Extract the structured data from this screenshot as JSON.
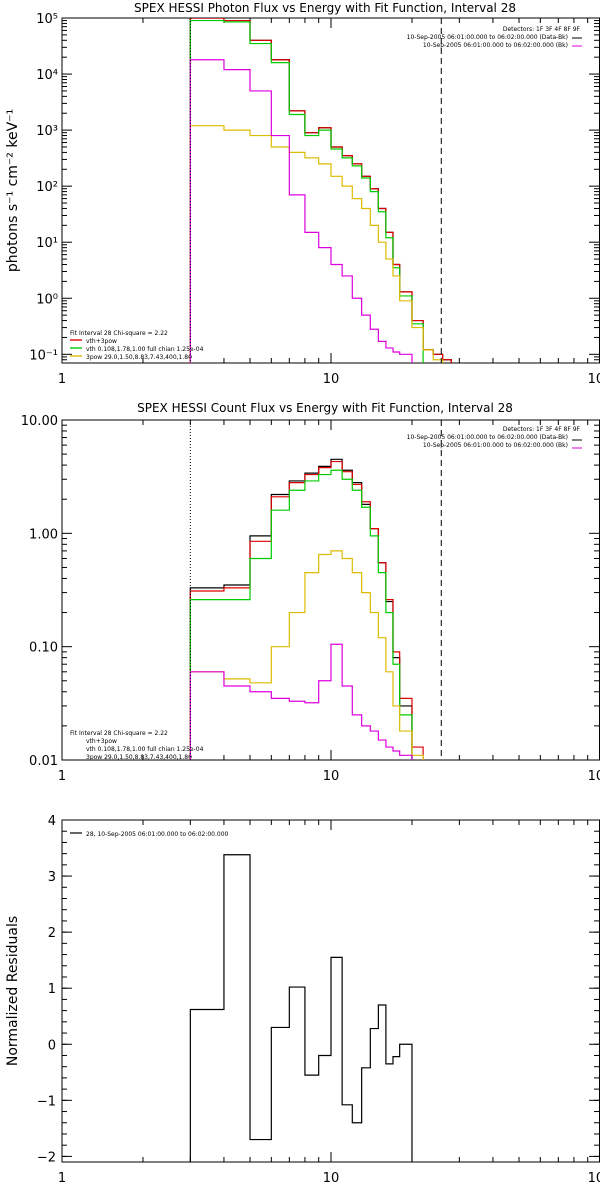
{
  "chart_data": [
    {
      "type": "line",
      "title": "SPEX HESSI Photon Flux vs Energy with Fit Function, Interval 28",
      "xlabel": "",
      "ylabel": "photons s⁻¹ cm⁻² keV⁻¹",
      "xscale": "log",
      "yscale": "log",
      "xlim": [
        1,
        100
      ],
      "ylim": [
        0.07,
        100000
      ],
      "x_ticks": [
        "1",
        "10",
        "100"
      ],
      "y_ticks": [
        "10⁻¹",
        "10⁰",
        "10¹",
        "10²",
        "10³",
        "10⁴",
        "10⁵"
      ],
      "bin_edges": [
        3,
        4,
        5,
        6,
        7,
        8,
        9,
        10,
        11,
        12,
        13,
        14,
        15,
        16,
        17,
        18,
        20,
        22,
        24,
        26,
        28
      ],
      "header_lines": [
        "Detectors: 1F 3F 4F 8F 9F",
        "10-Sep-2005 06:01:00.000 to 06:02:00.000 (Data-Bk)",
        "10-Sep-2005 06:01:00.000 to 06:02:00.000 (Bk)"
      ],
      "legend_lines": [
        "Fit Interval 28   Chi-square = 2.22",
        "vth+3pow",
        "vth 0.108,1.78,1.00  full chian 1.25e-04",
        "3pow 29.0,1.50,8.83,7.43,400,1.80"
      ],
      "vlines": [
        {
          "x": 3,
          "style": "dotted"
        },
        {
          "x": 25.7,
          "style": "dashed"
        }
      ],
      "series": [
        {
          "color": "#000000",
          "values": [
            100000,
            90000,
            40000,
            18000,
            2200,
            900,
            1100,
            500,
            350,
            250,
            150,
            90,
            40,
            15,
            4,
            1.3,
            0.4,
            0.12,
            0.1,
            0.08
          ]
        },
        {
          "color": "#dd0000",
          "values": [
            100000,
            90000,
            40000,
            18000,
            2200,
            900,
            1100,
            500,
            350,
            250,
            150,
            90,
            40,
            15,
            4,
            1.3,
            0.4,
            0.12,
            0.1,
            0.08
          ]
        },
        {
          "color": "#00cc00",
          "values": [
            90000,
            85000,
            35000,
            16000,
            1900,
            800,
            1000,
            460,
            320,
            230,
            140,
            80,
            35,
            12,
            3.5,
            1.1,
            0.35
          ]
        },
        {
          "color": "#ddbb00",
          "values": [
            1200,
            1000,
            800,
            500,
            400,
            320,
            250,
            150,
            100,
            60,
            40,
            20,
            10,
            5,
            2.5,
            0.9,
            0.3,
            0.12,
            0.08
          ]
        },
        {
          "color": "#dd00dd",
          "values": [
            18000,
            12000,
            5000,
            800,
            70,
            15,
            8,
            4,
            2.5,
            1,
            0.5,
            0.28,
            0.17,
            0.13,
            0.11,
            0.1
          ]
        }
      ]
    },
    {
      "type": "line",
      "title": "SPEX HESSI Count Flux vs Energy with Fit Function, Interval 28",
      "xlabel": "",
      "ylabel": "",
      "xscale": "log",
      "yscale": "log",
      "xlim": [
        1,
        100
      ],
      "ylim": [
        0.01,
        10
      ],
      "x_ticks": [
        "1",
        "10",
        "100"
      ],
      "y_ticks": [
        "0.01",
        "0.10",
        "1.00",
        "10.00"
      ],
      "bin_edges": [
        3,
        4,
        5,
        6,
        7,
        8,
        9,
        10,
        11,
        12,
        13,
        14,
        15,
        16,
        17,
        18,
        20,
        22,
        24,
        26,
        28
      ],
      "header_lines": [
        "Detectors: 1F 3F 4F 8F 9F",
        "10-Sep-2005 06:01:00.000 to 06:02:00.000 (Data-Bk)",
        "10-Sep-2005 06:01:00.000 to 06:02:00.000 (Bk)"
      ],
      "legend_lines": [
        "Fit Interval 28   Chi-square = 2.22",
        "vth+3pow",
        "vth 0.108,1.78,1.00  full chian 1.25e-04",
        "3pow 29.0,1.50,8.83,7.43,400,1.80"
      ],
      "vlines": [
        {
          "x": 3,
          "style": "dotted"
        },
        {
          "x": 25.7,
          "style": "dashed"
        }
      ],
      "series": [
        {
          "color": "#000000",
          "values": [
            0.33,
            0.35,
            0.95,
            2.2,
            2.9,
            3.4,
            3.9,
            4.5,
            3.6,
            2.8,
            1.8,
            1.1,
            0.55,
            0.25,
            0.08,
            0.03
          ]
        },
        {
          "color": "#dd0000",
          "values": [
            0.31,
            0.33,
            0.85,
            2.1,
            2.8,
            3.3,
            3.8,
            4.3,
            3.5,
            2.7,
            1.9,
            1.1,
            0.55,
            0.26,
            0.09,
            0.035,
            0.013
          ]
        },
        {
          "color": "#00cc00",
          "values": [
            0.26,
            0.26,
            0.6,
            1.6,
            2.4,
            2.9,
            3.3,
            3.6,
            3.0,
            2.4,
            1.7,
            0.95,
            0.45,
            0.2,
            0.07,
            0.025
          ]
        },
        {
          "color": "#ddbb00",
          "values": [
            0.06,
            0.052,
            0.048,
            0.1,
            0.2,
            0.45,
            0.65,
            0.7,
            0.6,
            0.45,
            0.3,
            0.2,
            0.12,
            0.06,
            0.03,
            0.018,
            0.011
          ]
        },
        {
          "color": "#dd00dd",
          "values": [
            0.06,
            0.045,
            0.04,
            0.035,
            0.033,
            0.032,
            0.05,
            0.105,
            0.045,
            0.025,
            0.02,
            0.018,
            0.015,
            0.013,
            0.012,
            0.011
          ]
        }
      ]
    },
    {
      "type": "line",
      "title": "",
      "xlabel": "",
      "ylabel": "Normalized Residuals",
      "xscale": "log",
      "yscale": "linear",
      "xlim": [
        1,
        100
      ],
      "ylim": [
        -2.1,
        4
      ],
      "x_ticks": [
        "1",
        "10",
        "100"
      ],
      "y_ticks": [
        "−2",
        "−1",
        "0",
        "1",
        "2",
        "3",
        "4"
      ],
      "legend_lines": [
        "28, 10-Sep-2005 06:01:00.000 to 06:02:00.000"
      ],
      "bin_edges": [
        3,
        4,
        5,
        6,
        7,
        8,
        9,
        10,
        11,
        12,
        13,
        14,
        15,
        16,
        17,
        18,
        20,
        22,
        24,
        26
      ],
      "series": [
        {
          "color": "#000000",
          "values": [
            0.62,
            3.38,
            -1.7,
            0.3,
            1.02,
            -0.55,
            -0.2,
            1.55,
            -1.08,
            -1.4,
            -0.42,
            0.28,
            0.7,
            -0.35,
            -0.22,
            0.0
          ]
        }
      ]
    }
  ]
}
